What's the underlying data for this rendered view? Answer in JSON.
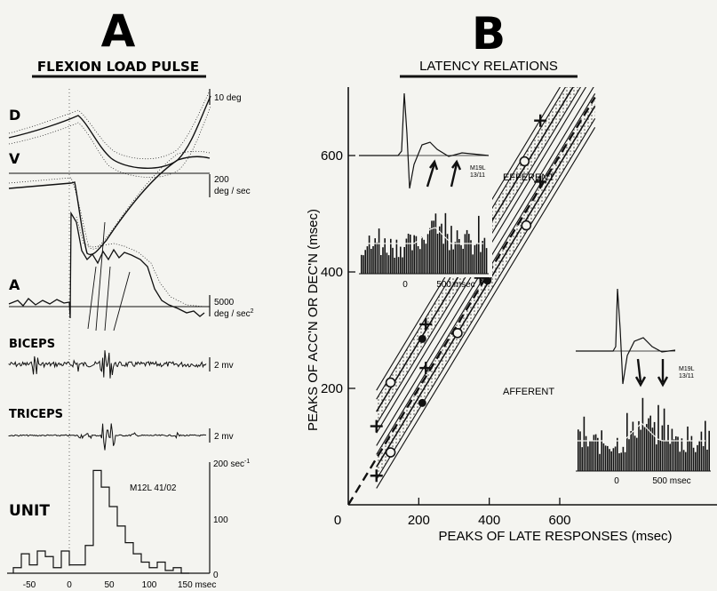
{
  "panel_a": {
    "letter": "A",
    "title": "FLEXION LOAD PULSE",
    "trace_labels": {
      "d": "D",
      "v": "V",
      "a": "A",
      "biceps": "BICEPS",
      "triceps": "TRICEPS",
      "unit": "UNIT"
    },
    "scales": {
      "d": "10 deg",
      "v_1": "200",
      "v_2": "deg / sec",
      "a_1": "5000",
      "a_2": "deg / sec",
      "a_sup": "2",
      "biceps": "2 mv",
      "triceps": "2 mv",
      "unit_top": "200 sec",
      "unit_top_sup": "-1",
      "unit_mid": "100",
      "unit_zero": "0"
    },
    "unit_id": "M12L 41/02",
    "time_ticks": [
      "-50",
      "0",
      "50",
      "100",
      "150 msec"
    ]
  },
  "panel_b": {
    "letter": "B",
    "title": "LATENCY RELATIONS",
    "efferent_label": "EFFERENT",
    "afferent_label": "AFFERENT",
    "inset_efferent": {
      "tag_1": "M19L",
      "tag_2": "13/11",
      "ticks": [
        "0",
        "500 msec"
      ]
    },
    "inset_afferent": {
      "tag_1": "M19L",
      "tag_2": "13/11",
      "ticks": [
        "0",
        "500 msec"
      ]
    }
  },
  "colors": {
    "ink": "#111111",
    "paper": "#f4f4f0"
  },
  "chart_data": [
    {
      "type": "histogram",
      "panel": "A",
      "xlabel": "msec",
      "ylabel": "sec-1",
      "xlim": [
        -70,
        155
      ],
      "ylim": [
        0,
        200
      ],
      "bin_width": 10,
      "bins": [
        {
          "x": -70,
          "y": 10
        },
        {
          "x": -60,
          "y": 35
        },
        {
          "x": -50,
          "y": 15
        },
        {
          "x": -40,
          "y": 40
        },
        {
          "x": -30,
          "y": 30
        },
        {
          "x": -20,
          "y": 10
        },
        {
          "x": -10,
          "y": 40
        },
        {
          "x": 0,
          "y": 15
        },
        {
          "x": 10,
          "y": 15
        },
        {
          "x": 20,
          "y": 50
        },
        {
          "x": 30,
          "y": 185
        },
        {
          "x": 40,
          "y": 155
        },
        {
          "x": 50,
          "y": 120
        },
        {
          "x": 60,
          "y": 85
        },
        {
          "x": 70,
          "y": 55
        },
        {
          "x": 80,
          "y": 35
        },
        {
          "x": 90,
          "y": 20
        },
        {
          "x": 100,
          "y": 10
        },
        {
          "x": 110,
          "y": 20
        },
        {
          "x": 120,
          "y": 5
        },
        {
          "x": 130,
          "y": 10
        },
        {
          "x": 140,
          "y": 0
        }
      ]
    },
    {
      "type": "scatter",
      "panel": "B",
      "title": "LATENCY RELATIONS",
      "xlabel": "PEAKS OF LATE RESPONSES (msec)",
      "ylabel": "PEAKS OF ACC'N OR DEC'N (msec)",
      "xlim": [
        0,
        620
      ],
      "ylim": [
        0,
        700
      ],
      "x_ticks": [
        "0",
        "200",
        "400",
        "600"
      ],
      "y_ticks": [
        "200",
        "400",
        "600"
      ],
      "series": [
        {
          "marker": "plus",
          "points": [
            [
              80,
              135
            ],
            [
              220,
              310
            ],
            [
              380,
              470
            ],
            [
              545,
              660
            ],
            [
              80,
              50
            ],
            [
              220,
              235
            ],
            [
              375,
              390
            ],
            [
              545,
              555
            ]
          ]
        },
        {
          "marker": "open-circle",
          "points": [
            [
              120,
              210
            ],
            [
              310,
              405
            ],
            [
              500,
              590
            ],
            [
              120,
              90
            ],
            [
              310,
              295
            ],
            [
              505,
              480
            ]
          ]
        },
        {
          "marker": "filled-circle",
          "points": [
            [
              210,
              285
            ],
            [
              400,
              490
            ],
            [
              210,
              175
            ],
            [
              395,
              385
            ]
          ]
        }
      ],
      "fit_lines": [
        {
          "slope": 1,
          "intercept": 80,
          "x_range": [
            80,
            620
          ]
        },
        {
          "slope": 1,
          "intercept": -15,
          "x_range": [
            80,
            620
          ]
        }
      ],
      "reference_line": {
        "slope": 1,
        "intercept": 0,
        "style": "dashed"
      }
    }
  ]
}
